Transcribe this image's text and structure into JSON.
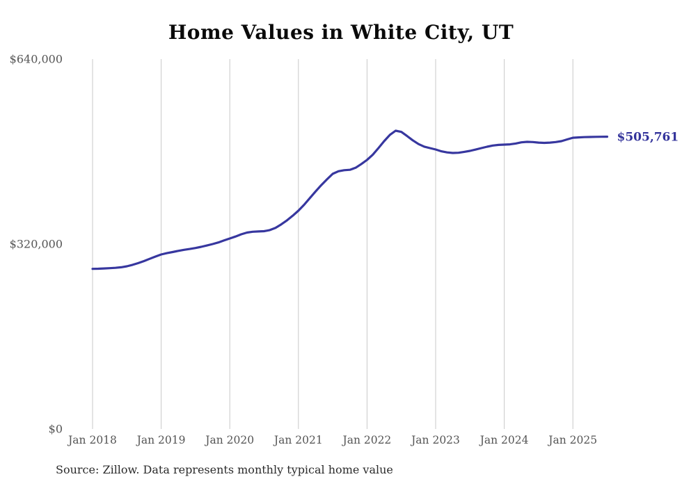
{
  "title": "Home Values in White City, UT",
  "source_note": "Source: Zillow. Data represents monthly typical home value",
  "end_label": "$505,761",
  "colors": {
    "line": "#37379f",
    "end_label": "#33339b",
    "gridline": "#c9c9c9",
    "axis_text": "#555555",
    "title_text": "#0a0a0a",
    "source_text": "#2b2b2b",
    "background": "#ffffff"
  },
  "chart_data": {
    "type": "line",
    "title": "Home Values in White City, UT",
    "series_name": "Monthly typical home value",
    "frequency": "monthly",
    "start_month": "Jan 2018",
    "end_month": "Jul 2025",
    "values": [
      277000,
      277300,
      277800,
      278200,
      278800,
      279800,
      281500,
      284000,
      287000,
      290500,
      294500,
      298300,
      302000,
      304200,
      306200,
      308200,
      310000,
      311500,
      313200,
      315200,
      317500,
      320000,
      322800,
      326200,
      329600,
      333000,
      336800,
      339800,
      341300,
      341800,
      342200,
      344200,
      348000,
      354000,
      361000,
      369000,
      377700,
      388000,
      399500,
      411000,
      422000,
      432000,
      441500,
      446000,
      447800,
      448500,
      452000,
      458500,
      465600,
      474500,
      486000,
      498000,
      509000,
      516100,
      514000,
      507000,
      499500,
      493000,
      488500,
      486000,
      483600,
      480500,
      478500,
      477600,
      478000,
      479500,
      481200,
      483500,
      486000,
      488400,
      490500,
      491500,
      492000,
      492500,
      494000,
      496000,
      496800,
      496500,
      495500,
      495000,
      495500,
      496500,
      498000,
      501000,
      504000,
      504600,
      505000,
      505300,
      505500,
      505650,
      505761
    ],
    "last_value": 505761,
    "last_value_label": "$505,761",
    "ylim": [
      0,
      640000
    ],
    "y_ticks": [
      {
        "label": "$640,000",
        "value": 640000
      },
      {
        "label": "$320,000",
        "value": 320000
      },
      {
        "label": "$0",
        "value": 0
      }
    ],
    "x_ticks": [
      {
        "label": "Jan 2018",
        "month_index": 0
      },
      {
        "label": "Jan 2019",
        "month_index": 12
      },
      {
        "label": "Jan 2020",
        "month_index": 24
      },
      {
        "label": "Jan 2021",
        "month_index": 36
      },
      {
        "label": "Jan 2022",
        "month_index": 48
      },
      {
        "label": "Jan 2023",
        "month_index": 60
      },
      {
        "label": "Jan 2024",
        "month_index": 72
      },
      {
        "label": "Jan 2025",
        "month_index": 84
      }
    ],
    "grid": "vertical-only",
    "legend_position": "none",
    "xlabel": "",
    "ylabel": ""
  }
}
